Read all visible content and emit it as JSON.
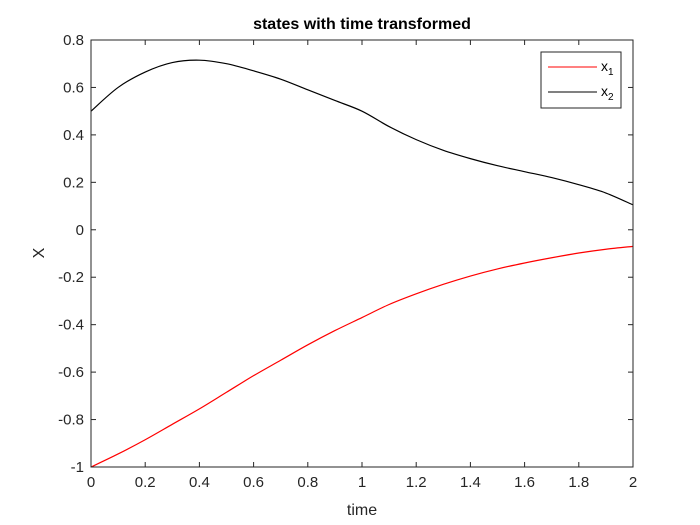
{
  "chart_data": {
    "type": "line",
    "title": "states with time transformed",
    "xlabel": "time",
    "ylabel": "X",
    "xlim": [
      0,
      2
    ],
    "ylim": [
      -1,
      0.8
    ],
    "xticks": [
      0,
      0.2,
      0.4,
      0.6,
      0.8,
      1,
      1.2,
      1.4,
      1.6,
      1.8,
      2
    ],
    "xtick_labels": [
      "0",
      "0.2",
      "0.4",
      "0.6",
      "0.8",
      "1",
      "1.2",
      "1.4",
      "1.6",
      "1.8",
      "2"
    ],
    "yticks": [
      -1,
      -0.8,
      -0.6,
      -0.4,
      -0.2,
      0,
      0.2,
      0.4,
      0.6,
      0.8
    ],
    "ytick_labels": [
      "-1",
      "-0.8",
      "-0.6",
      "-0.4",
      "-0.2",
      "0",
      "0.2",
      "0.4",
      "0.6",
      "0.8"
    ],
    "grid": false,
    "legend_position": "top-right",
    "series": [
      {
        "name": "x",
        "subscript": "1",
        "color": "#ff0000",
        "x": [
          0,
          0.1,
          0.2,
          0.3,
          0.4,
          0.5,
          0.6,
          0.7,
          0.8,
          0.9,
          1.0,
          1.1,
          1.2,
          1.3,
          1.4,
          1.5,
          1.6,
          1.7,
          1.8,
          1.9,
          2.0
        ],
        "y": [
          -1.0,
          -0.945,
          -0.885,
          -0.82,
          -0.755,
          -0.685,
          -0.615,
          -0.55,
          -0.485,
          -0.425,
          -0.37,
          -0.315,
          -0.27,
          -0.23,
          -0.195,
          -0.165,
          -0.14,
          -0.118,
          -0.098,
          -0.082,
          -0.07
        ]
      },
      {
        "name": "x",
        "subscript": "2",
        "color": "#000000",
        "x": [
          0,
          0.1,
          0.2,
          0.3,
          0.4,
          0.5,
          0.6,
          0.7,
          0.8,
          0.9,
          1.0,
          1.1,
          1.2,
          1.3,
          1.4,
          1.5,
          1.6,
          1.7,
          1.8,
          1.9,
          2.0
        ],
        "y": [
          0.5,
          0.6,
          0.665,
          0.705,
          0.715,
          0.7,
          0.67,
          0.635,
          0.59,
          0.545,
          0.5,
          0.435,
          0.38,
          0.335,
          0.3,
          0.27,
          0.245,
          0.22,
          0.19,
          0.155,
          0.105
        ]
      }
    ]
  }
}
